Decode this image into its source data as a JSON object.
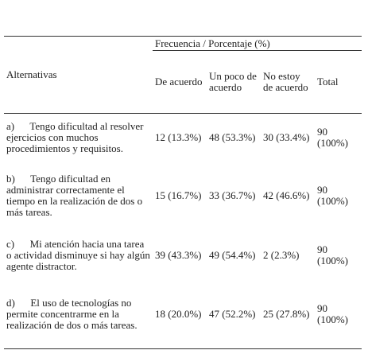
{
  "table": {
    "group_header": "Frecuencia / Porcentaje (%)",
    "columns": [
      "Alternativas",
      "De acuerdo",
      "Un poco de acuerdo",
      "No estoy de acuerdo",
      "Total"
    ],
    "rows": [
      [
        "a)      Tengo dificultad al resolver ejercicios con muchos procedimientos y requisitos.",
        "12 (13.3%)",
        "48 (53.3%)",
        "30 (33.4%)",
        "90 (100%)"
      ],
      [
        "b)      Tengo dificultad en administrar correctamente el tiempo en la realización de dos o más tareas.",
        "15 (16.7%)",
        "33 (36.7%)",
        "42 (46.6%)",
        "90 (100%)"
      ],
      [
        "c)      Mi atención hacia una tarea o actividad disminuye si hay algún agente distractor.",
        "39 (43.3%)",
        "49 (54.4%)",
        "2 (2.3%)",
        "90 (100%)"
      ],
      [
        "d)      El uso de tecnologías no permite concentrarme en la realización de dos o más tareas.",
        "18 (20.0%)",
        "47 (52.2%)",
        "25 (27.8%)",
        "90 (100%)"
      ]
    ]
  }
}
